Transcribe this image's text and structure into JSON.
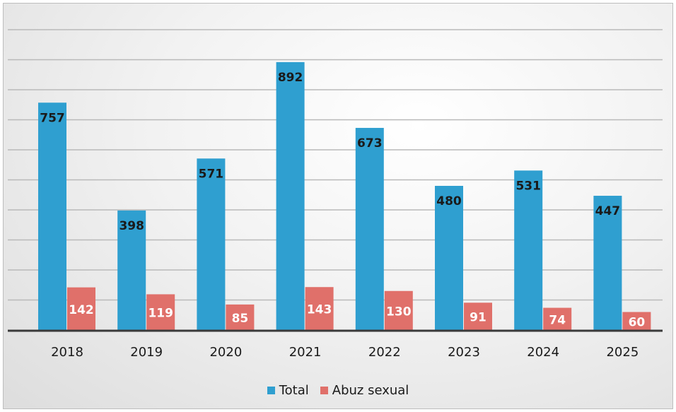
{
  "chart_data": {
    "type": "bar",
    "categories": [
      "2018",
      "2019",
      "2020",
      "2021",
      "2022",
      "2023",
      "2024",
      "2025"
    ],
    "series": [
      {
        "name": "Total",
        "values": [
          757,
          398,
          571,
          892,
          673,
          480,
          531,
          447
        ],
        "color": "#2f9fd0",
        "label_color": "#1a1a1a",
        "label_position": "inside-top"
      },
      {
        "name": "Abuz sexual",
        "values": [
          142,
          119,
          85,
          143,
          130,
          91,
          74,
          60
        ],
        "color": "#e0706a",
        "label_color": "#ffffff",
        "label_position": "inside-center"
      }
    ],
    "ylim": [
      0,
      1000
    ],
    "y_axis_labels_shown": false,
    "grid": true,
    "gridline_step": 100,
    "legend_position": "bottom"
  }
}
